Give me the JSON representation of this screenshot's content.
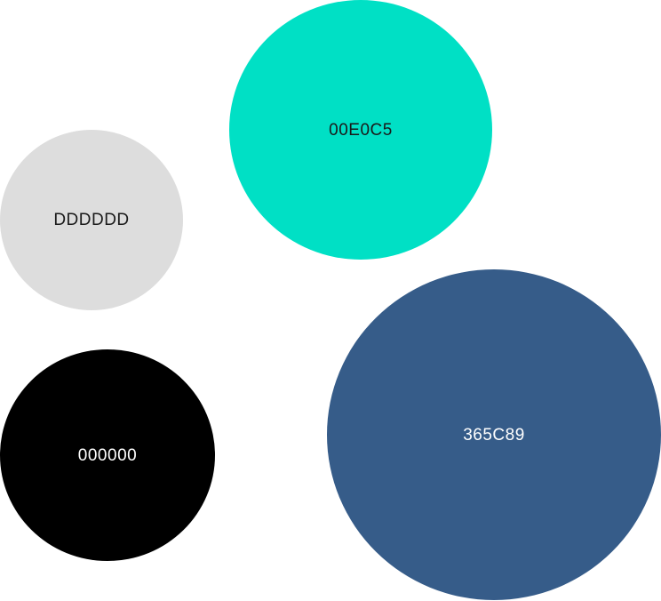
{
  "swatches": [
    {
      "label": "00E0C5",
      "fill": "#00E0C5",
      "text_color": "#1a1a1a"
    },
    {
      "label": "DDDDDD",
      "fill": "#DDDDDD",
      "text_color": "#1a1a1a"
    },
    {
      "label": "365C89",
      "fill": "#365C89",
      "text_color": "#ffffff"
    },
    {
      "label": "000000",
      "fill": "#000000",
      "text_color": "#ffffff"
    }
  ]
}
